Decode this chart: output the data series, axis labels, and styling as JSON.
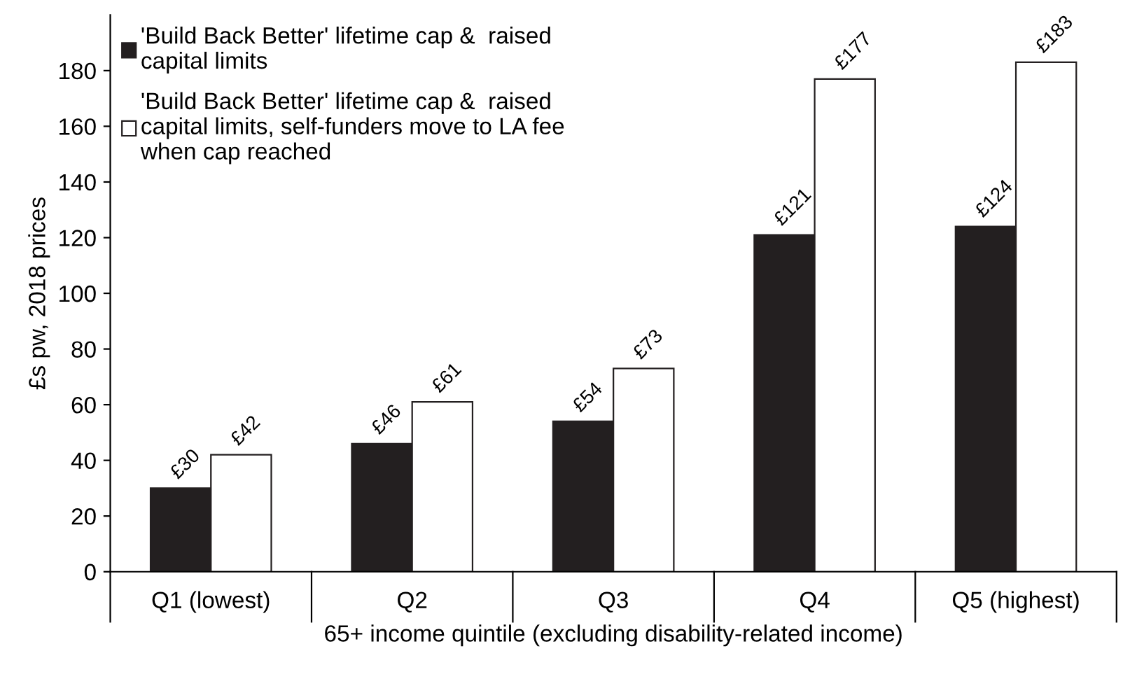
{
  "chart_data": {
    "type": "bar",
    "xlabel": "65+ income quintile (excluding disability-related income)",
    "ylabel": "£s pw, 2018 prices",
    "categories": [
      "Q1 (lowest)",
      "Q2",
      "Q3",
      "Q4",
      "Q5 (highest)"
    ],
    "series": [
      {
        "name": "'Build Back Better' lifetime cap &  raised capital limits",
        "color": "#231f20",
        "values": [
          30,
          46,
          54,
          121,
          124
        ],
        "value_labels": [
          "£30",
          "£46",
          "£54",
          "£121",
          "£124"
        ]
      },
      {
        "name": "'Build Back Better' lifetime cap &  raised capital limits, self-funders move to LA fee when cap reached",
        "color": "#ffffff",
        "values": [
          42,
          61,
          73,
          177,
          183
        ],
        "value_labels": [
          "£42",
          "£61",
          "£73",
          "£177",
          "£183"
        ]
      }
    ],
    "ylim": [
      0,
      200
    ],
    "yticks": [
      0,
      20,
      40,
      60,
      80,
      100,
      120,
      140,
      160,
      180
    ],
    "grid": false,
    "legend": "top left"
  }
}
